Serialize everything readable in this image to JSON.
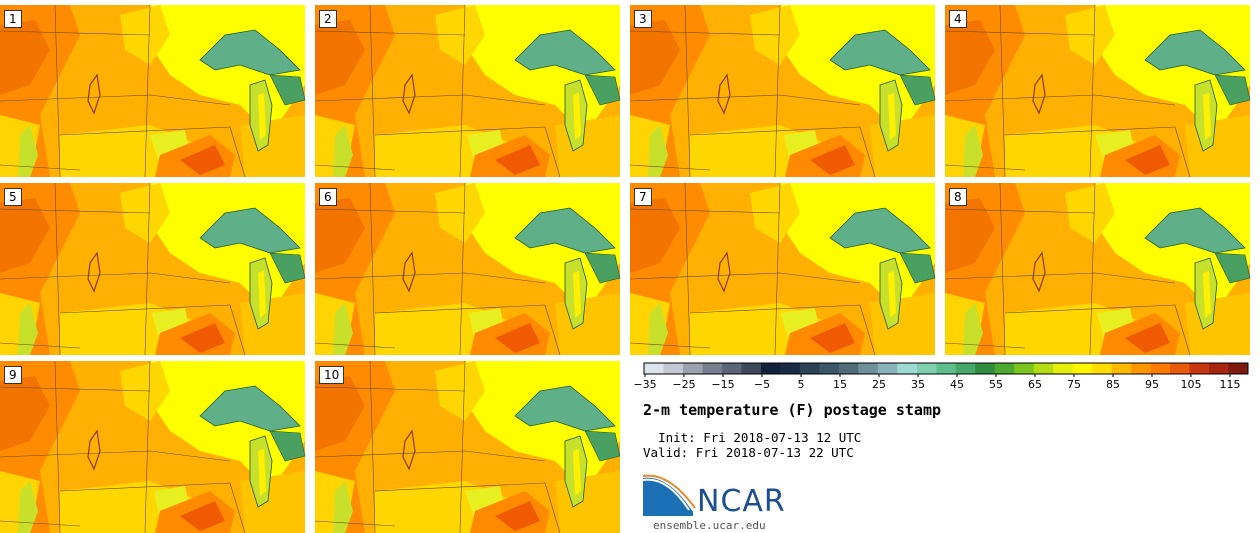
{
  "title": "2-m temperature (F) postage stamp",
  "init_label": "Init:",
  "init_value": "Fri 2018-07-13 12 UTC",
  "valid_label": "Valid:",
  "valid_value": "Fri 2018-07-13 22 UTC",
  "members": [
    "1",
    "2",
    "3",
    "4",
    "5",
    "6",
    "7",
    "8",
    "9",
    "10"
  ],
  "colorbar": {
    "ticks": [
      "−35",
      "−25",
      "−15",
      "−5",
      "5",
      "15",
      "25",
      "35",
      "45",
      "55",
      "65",
      "75",
      "85",
      "95",
      "105",
      "115"
    ],
    "colors": [
      "#dde3ec",
      "#c3c8d4",
      "#9aa2b0",
      "#77808f",
      "#5a6577",
      "#3e4a5c",
      "#13203a",
      "#1b2b47",
      "#2d4256",
      "#3b5666",
      "#4f6e7a",
      "#6f919a",
      "#8ab5b8",
      "#9fd9d6",
      "#7fd0b0",
      "#5fbf8c",
      "#45a86a",
      "#2f8c3c",
      "#4caa2e",
      "#7cc41e",
      "#b5dd13",
      "#e4ef0c",
      "#fff500",
      "#ffdd00",
      "#ffba00",
      "#ff9600",
      "#ff7a00",
      "#e95a0a",
      "#c7380f",
      "#a82512",
      "#7e1a0e"
    ]
  },
  "logo": {
    "name": "NCAR",
    "url": "ensemble.ucar.edu"
  },
  "colors": {
    "hot": "#ff8c00",
    "warm": "#ffb000",
    "mild": "#ffd700",
    "cool": "#ffff00",
    "lake": "#5fb088"
  }
}
